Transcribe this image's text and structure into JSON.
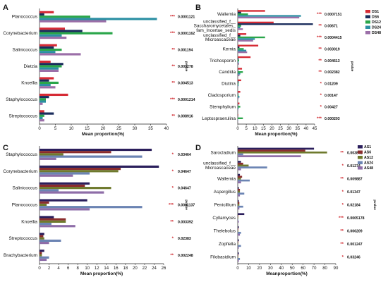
{
  "colors": {
    "series_palette_1": [
      "#d62b35",
      "#1a2d5c",
      "#2aa64a",
      "#2b8fa3",
      "#9b6fa8"
    ],
    "series_palette_2": [
      "#2b1f5c",
      "#8b2d2d",
      "#6f7a2e",
      "#6b84b3",
      "#8e6da8"
    ]
  },
  "chart_data": [
    {
      "panel": "A",
      "type": "bar",
      "categories": [
        "Planococcus",
        "Corynebacterium",
        "Salinicoccus",
        "Dietzia",
        "Knoellia",
        "Staphylococcus",
        "Streptococcus"
      ],
      "stars": [
        "***",
        "***",
        "**",
        "**",
        "**",
        "***",
        "**"
      ],
      "pvalues": [
        "0.0001121",
        "0.0001162",
        "0.001194",
        "0.003278",
        "0.004513",
        "0.0001214",
        "0.008916"
      ],
      "series": [
        {
          "name": "",
          "values": [
            4.5,
            8,
            5.5,
            3.5,
            4.5,
            9,
            1.5
          ]
        },
        {
          "name": "",
          "values": [
            1.5,
            13.5,
            4.5,
            7.5,
            3,
            3,
            4.5
          ]
        },
        {
          "name": "",
          "values": [
            16,
            23,
            7,
            7,
            6,
            2,
            1.5
          ]
        },
        {
          "name": "",
          "values": [
            37,
            7,
            5,
            6,
            3.5,
            2,
            1
          ]
        },
        {
          "name": "",
          "values": [
            21,
            8.5,
            13,
            6,
            5,
            1,
            1.5
          ]
        }
      ],
      "xticks": [
        0,
        5,
        10,
        15,
        20,
        25,
        30,
        35,
        40
      ],
      "xlim": [
        0,
        40
      ],
      "xlabel": "Mean proportion(%)",
      "side_label": "pvalue"
    },
    {
      "panel": "B",
      "type": "bar",
      "categories": [
        "Wallemia",
        "unclassified_f__ Saccharomycetales_ fam_Incertae_sedis",
        "unclassified_f__ Microascaceae",
        "Kernia",
        "Trichosporon",
        "Candida",
        "Diutina",
        "Cladosporium",
        "Stemphylium",
        "Leptospraerulina"
      ],
      "stars": [
        "***",
        "**",
        "***",
        "**",
        "**",
        "**",
        "*",
        "*",
        "*",
        "***"
      ],
      "pvalues": [
        "0.0007151",
        "0.00671",
        "0.0004415",
        "0.003019",
        "0.004613",
        "0.002382",
        "0.01209",
        "0.00147",
        "0.00427",
        "0.000203"
      ],
      "series": [
        {
          "name": "DS1",
          "values": [
            16,
            21,
            5,
            12,
            7.5,
            2.5,
            2,
            1.5,
            1,
            0.3
          ]
        },
        {
          "name": "DS6",
          "values": [
            2,
            44,
            1.5,
            1,
            0.5,
            0.3,
            0.5,
            0.3,
            0.3,
            0.2
          ]
        },
        {
          "name": "DS12",
          "values": [
            6,
            2,
            16,
            3.5,
            0.8,
            3,
            0.5,
            0.5,
            1.5,
            3
          ]
        },
        {
          "name": "DS24",
          "values": [
            37,
            1.5,
            10,
            5,
            0.5,
            1.5,
            0.5,
            1,
            0.5,
            0.2
          ]
        },
        {
          "name": "DS48",
          "values": [
            36,
            3,
            9,
            5.5,
            0.8,
            1,
            0.3,
            0.5,
            0.3,
            0.2
          ]
        }
      ],
      "xticks": [
        0,
        5,
        10,
        15,
        20,
        25,
        30,
        35,
        40,
        45
      ],
      "xlim": [
        0,
        45
      ],
      "xlabel": "Mean proportion(%)",
      "side_label": "pvalue",
      "legend_position": "right"
    },
    {
      "panel": "C",
      "type": "bar",
      "categories": [
        "Staphylococcus",
        "Corynebacterium",
        "Salinicoccus",
        "Planococcus",
        "Knoellia",
        "Streptococcus",
        "Brachybacterium"
      ],
      "stars": [
        "*",
        "*",
        "*",
        "***",
        "**",
        "*",
        "**"
      ],
      "pvalues": [
        "0.03464",
        "0.04647",
        "0.04647",
        "0.0001137",
        "0.003392",
        "0.02383",
        "0.002248"
      ],
      "series": [
        {
          "name": "",
          "values": [
            23.5,
            25,
            10.5,
            10,
            3,
            1,
            1
          ]
        },
        {
          "name": "",
          "values": [
            15,
            17,
            9.5,
            2,
            5.5,
            0.8,
            0.5
          ]
        },
        {
          "name": "",
          "values": [
            5,
            16.5,
            15,
            1.5,
            5.5,
            1,
            0.5
          ]
        },
        {
          "name": "",
          "values": [
            21.5,
            10.5,
            4,
            21.5,
            2.5,
            4.5,
            2
          ]
        },
        {
          "name": "",
          "values": [
            3.5,
            7,
            13.5,
            10.5,
            7.5,
            2,
            1.5
          ]
        }
      ],
      "xticks": [
        0,
        2,
        4,
        6,
        8,
        10,
        12,
        14,
        16,
        18,
        20,
        22,
        24,
        26
      ],
      "xlim": [
        0,
        26
      ],
      "xlabel": "Mean proportion(%)",
      "side_label": "pvalue"
    },
    {
      "panel": "D",
      "type": "bar",
      "categories": [
        "Sarocladium",
        "unclassified_f__ Microascaceae",
        "Wallemia",
        "Aspergillus",
        "Penicillium",
        "Cyllamyces",
        "Thelebolus",
        "Zopfiella",
        "Filobasidium"
      ],
      "stars": [
        "**",
        "*",
        "**",
        "*",
        "*",
        "***",
        "**",
        "**",
        "*"
      ],
      "pvalues": [
        "0.003841",
        "0.01274",
        "0.009887",
        "0.01347",
        "0.02184",
        "0.0005178",
        "0.006209",
        "0.001247",
        "0.03246"
      ],
      "series": [
        {
          "name": "AS1",
          "values": [
            70,
            3,
            2,
            1,
            1,
            6,
            1,
            1,
            1
          ]
        },
        {
          "name": "AS6",
          "values": [
            62,
            5,
            4,
            2,
            1.5,
            0.5,
            0.5,
            0.5,
            0.5
          ]
        },
        {
          "name": "AS12",
          "values": [
            82,
            10,
            3,
            2,
            1.5,
            0.5,
            0.5,
            0.5,
            0.5
          ]
        },
        {
          "name": "AS24",
          "values": [
            5,
            27,
            11,
            6,
            5,
            0.5,
            3,
            3,
            2
          ]
        },
        {
          "name": "AS48",
          "values": [
            58,
            3,
            3,
            2,
            1.5,
            1,
            2,
            1,
            1
          ]
        }
      ],
      "xticks": [
        0,
        10,
        20,
        30,
        40,
        50,
        60,
        70,
        80,
        90
      ],
      "xlim": [
        0,
        90
      ],
      "xlabel": "Meanproportion(%)",
      "side_label": "pvalue",
      "legend_position": "right"
    }
  ]
}
